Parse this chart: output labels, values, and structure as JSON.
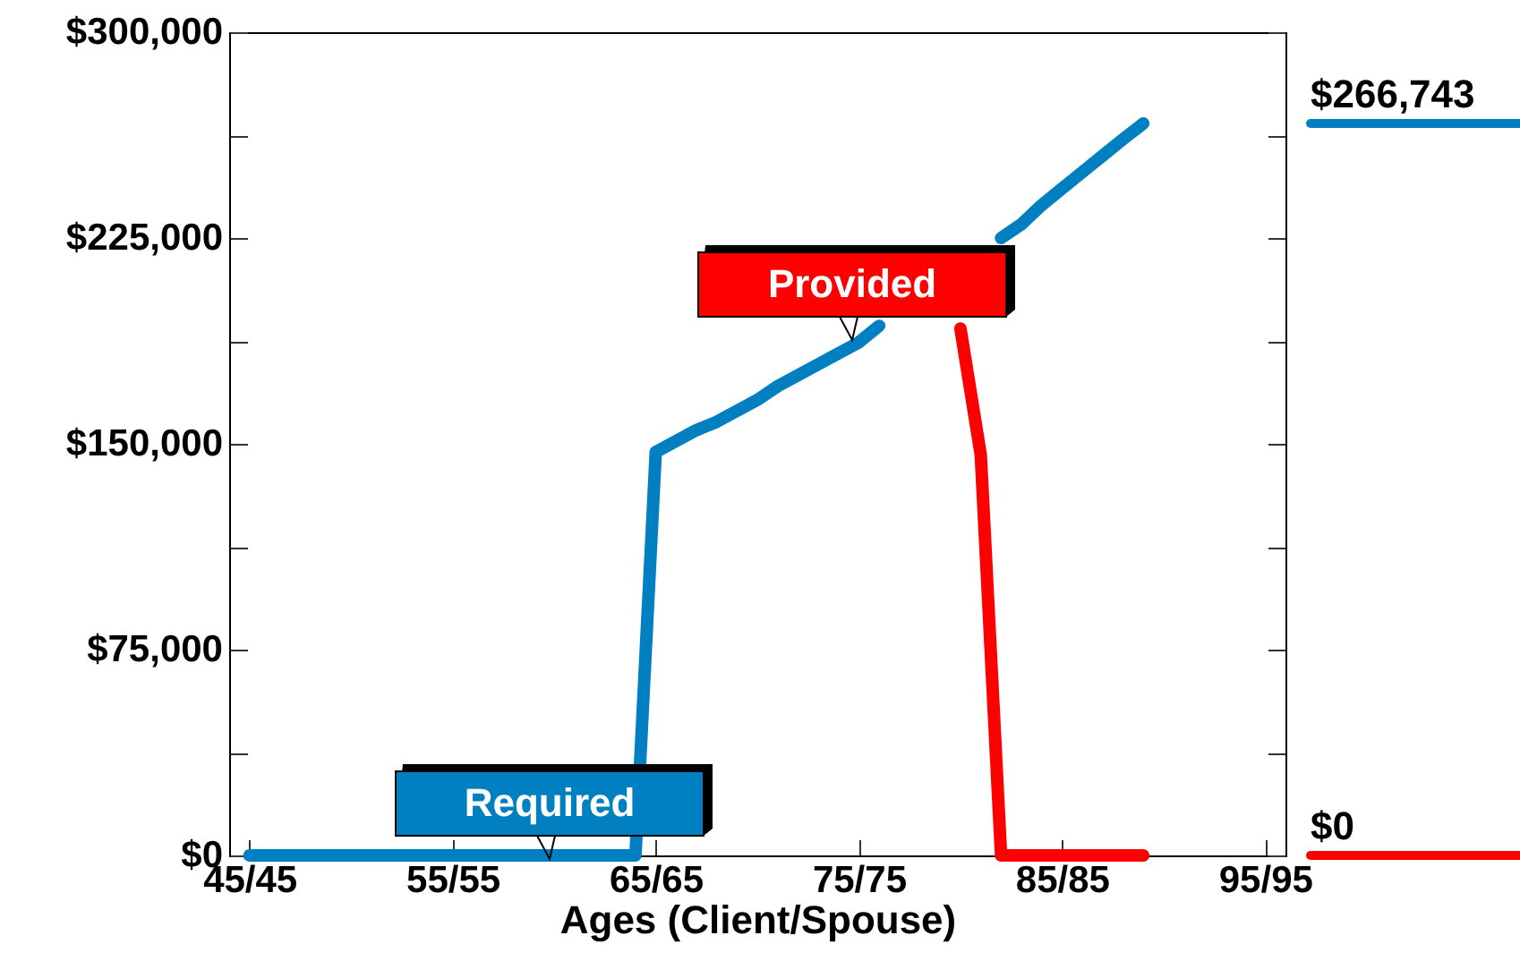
{
  "chart_data": {
    "type": "line",
    "xlabel": "Ages (Client/Spouse)",
    "categories": [
      "45/45",
      null,
      null,
      null,
      null,
      null,
      null,
      null,
      null,
      null,
      "55/55",
      null,
      null,
      null,
      null,
      null,
      null,
      null,
      null,
      null,
      "65/65",
      null,
      null,
      null,
      null,
      null,
      null,
      null,
      null,
      null,
      "75/75",
      null,
      null,
      null,
      null,
      null,
      null,
      null,
      null,
      null,
      "85/85",
      null,
      null,
      null,
      null,
      null,
      null,
      null,
      null,
      null,
      "95/95"
    ],
    "ylim": [
      0,
      300000
    ],
    "yticks": [
      {
        "value": 0,
        "label": "$0"
      },
      {
        "value": 37500,
        "label": null
      },
      {
        "value": 75000,
        "label": "$75,000"
      },
      {
        "value": 112500,
        "label": null
      },
      {
        "value": 150000,
        "label": "$150,000"
      },
      {
        "value": 187500,
        "label": null
      },
      {
        "value": 225000,
        "label": "$225,000"
      },
      {
        "value": 262500,
        "label": null
      },
      {
        "value": 300000,
        "label": "$300,000"
      }
    ],
    "series": [
      {
        "name": "Required",
        "color": "#0080c0",
        "values": [
          0,
          0,
          0,
          0,
          0,
          0,
          0,
          0,
          0,
          0,
          0,
          0,
          0,
          0,
          0,
          0,
          0,
          0,
          0,
          0,
          147000,
          151000,
          155000,
          158000,
          162000,
          166000,
          171000,
          175000,
          179000,
          183000,
          187000,
          193000,
          null,
          null,
          null,
          null,
          null,
          225000,
          230000,
          237000,
          243000,
          249000,
          255000,
          261000,
          266743,
          null,
          null,
          null,
          null,
          null,
          null
        ]
      },
      {
        "name": "Provided",
        "color": "#ff0000",
        "values": [
          null,
          null,
          null,
          null,
          null,
          null,
          null,
          null,
          null,
          null,
          null,
          null,
          null,
          null,
          null,
          null,
          null,
          null,
          null,
          null,
          null,
          null,
          null,
          null,
          null,
          null,
          null,
          null,
          null,
          null,
          null,
          null,
          null,
          null,
          null,
          192000,
          146000,
          0,
          0,
          0,
          0,
          0,
          0,
          0,
          0,
          null,
          null,
          null,
          null,
          null,
          null
        ]
      }
    ],
    "annotations": [
      "$266,743",
      "$0"
    ]
  }
}
